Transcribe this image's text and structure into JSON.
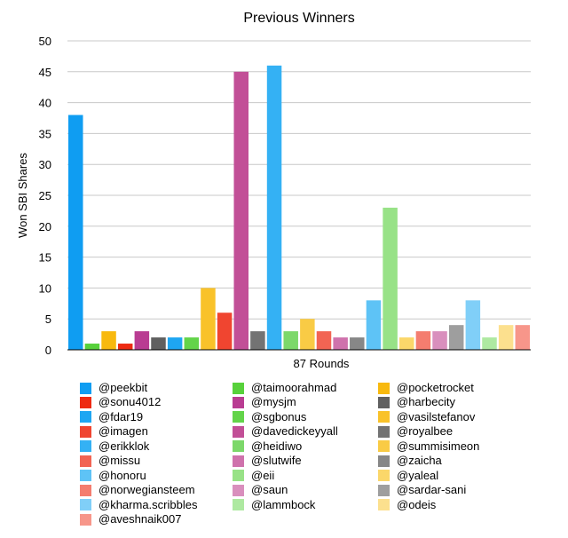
{
  "chart_data": {
    "type": "bar",
    "title": "Previous Winners",
    "xlabel": "87 Rounds",
    "ylabel": "Won SBI Shares",
    "ylim": [
      0,
      50
    ],
    "yticks": [
      0,
      5,
      10,
      15,
      20,
      25,
      30,
      35,
      40,
      45,
      50
    ],
    "grid": true,
    "legend_position": "bottom",
    "series": [
      {
        "name": "@peekbit",
        "value": 38,
        "color": "#0f9df2"
      },
      {
        "name": "@taimoorahmad",
        "value": 1,
        "color": "#57d13b"
      },
      {
        "name": "@pocketrocket",
        "value": 3,
        "color": "#f8b90e"
      },
      {
        "name": "@sonu4012",
        "value": 1,
        "color": "#ee2a12"
      },
      {
        "name": "@mysjm",
        "value": 3,
        "color": "#b93c92"
      },
      {
        "name": "@harbecity",
        "value": 2,
        "color": "#606060"
      },
      {
        "name": "@fdar19",
        "value": 2,
        "color": "#1ea6f2"
      },
      {
        "name": "@sgbonus",
        "value": 2,
        "color": "#63d44a"
      },
      {
        "name": "@vasilstefanov",
        "value": 10,
        "color": "#f9c22a"
      },
      {
        "name": "@imagen",
        "value": 6,
        "color": "#f04530"
      },
      {
        "name": "@davedickeyyall",
        "value": 45,
        "color": "#c24f97"
      },
      {
        "name": "@royalbee",
        "value": 3,
        "color": "#737373"
      },
      {
        "name": "@erikklok",
        "value": 46,
        "color": "#34b1f4"
      },
      {
        "name": "@heidiwo",
        "value": 3,
        "color": "#7cd86a"
      },
      {
        "name": "@summisimeon",
        "value": 5,
        "color": "#f9cb45"
      },
      {
        "name": "@missu",
        "value": 3,
        "color": "#f26453"
      },
      {
        "name": "@slutwife",
        "value": 2,
        "color": "#cf72ac"
      },
      {
        "name": "@zaicha",
        "value": 2,
        "color": "#878787"
      },
      {
        "name": "@honoru",
        "value": 8,
        "color": "#5ec3f6"
      },
      {
        "name": "@eii",
        "value": 23,
        "color": "#98e287"
      },
      {
        "name": "@yaleal",
        "value": 2,
        "color": "#fbd76a"
      },
      {
        "name": "@norwegiansteem",
        "value": 3,
        "color": "#f47d6f"
      },
      {
        "name": "@saun",
        "value": 3,
        "color": "#d98fbd"
      },
      {
        "name": "@sardar-sani",
        "value": 4,
        "color": "#9e9e9e"
      },
      {
        "name": "@kharma.scribbles",
        "value": 8,
        "color": "#80cff8"
      },
      {
        "name": "@lammbock",
        "value": 2,
        "color": "#aee9a1"
      },
      {
        "name": "@odeis",
        "value": 4,
        "color": "#fce08e"
      },
      {
        "name": "@aveshnaik007",
        "value": 4,
        "color": "#f7968a"
      }
    ]
  }
}
